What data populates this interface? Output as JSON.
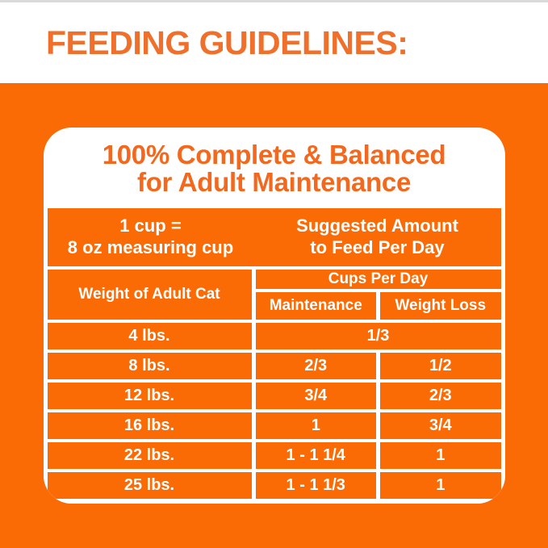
{
  "colors": {
    "bg_orange": "#FA6A05",
    "heading_orange": "#F0702B",
    "title_orange": "#F2681E",
    "cell_orange": "#FA6A05",
    "top_line_gray": "#D9D9D9",
    "white": "#FFFFFF"
  },
  "header": {
    "title": "FEEDING GUIDELINES:"
  },
  "card": {
    "title_line1": "100% Complete & Balanced",
    "title_line2": "for Adult Maintenance",
    "cup_note": {
      "line1": "1 cup =",
      "line2": "8 oz measuring cup"
    },
    "suggested": {
      "line1": "Suggested Amount",
      "line2": "to Feed Per Day"
    },
    "table": {
      "weight_header": "Weight of Adult Cat",
      "cups_header": "Cups Per Day",
      "maintenance_header": "Maintenance",
      "weight_loss_header": "Weight Loss",
      "rows": [
        {
          "weight": "4 lbs.",
          "maintenance": "1/3",
          "weight_loss": "",
          "spans_both_columns": true
        },
        {
          "weight": "8 lbs.",
          "maintenance": "2/3",
          "weight_loss": "1/2",
          "spans_both_columns": false
        },
        {
          "weight": "12 lbs.",
          "maintenance": "3/4",
          "weight_loss": "2/3",
          "spans_both_columns": false
        },
        {
          "weight": "16 lbs.",
          "maintenance": "1",
          "weight_loss": "3/4",
          "spans_both_columns": false
        },
        {
          "weight": "22 lbs.",
          "maintenance": "1 - 1 1/4",
          "weight_loss": "1",
          "spans_both_columns": false
        },
        {
          "weight": "25 lbs.",
          "maintenance": "1 - 1 1/3",
          "weight_loss": "1",
          "spans_both_columns": false
        }
      ]
    }
  }
}
